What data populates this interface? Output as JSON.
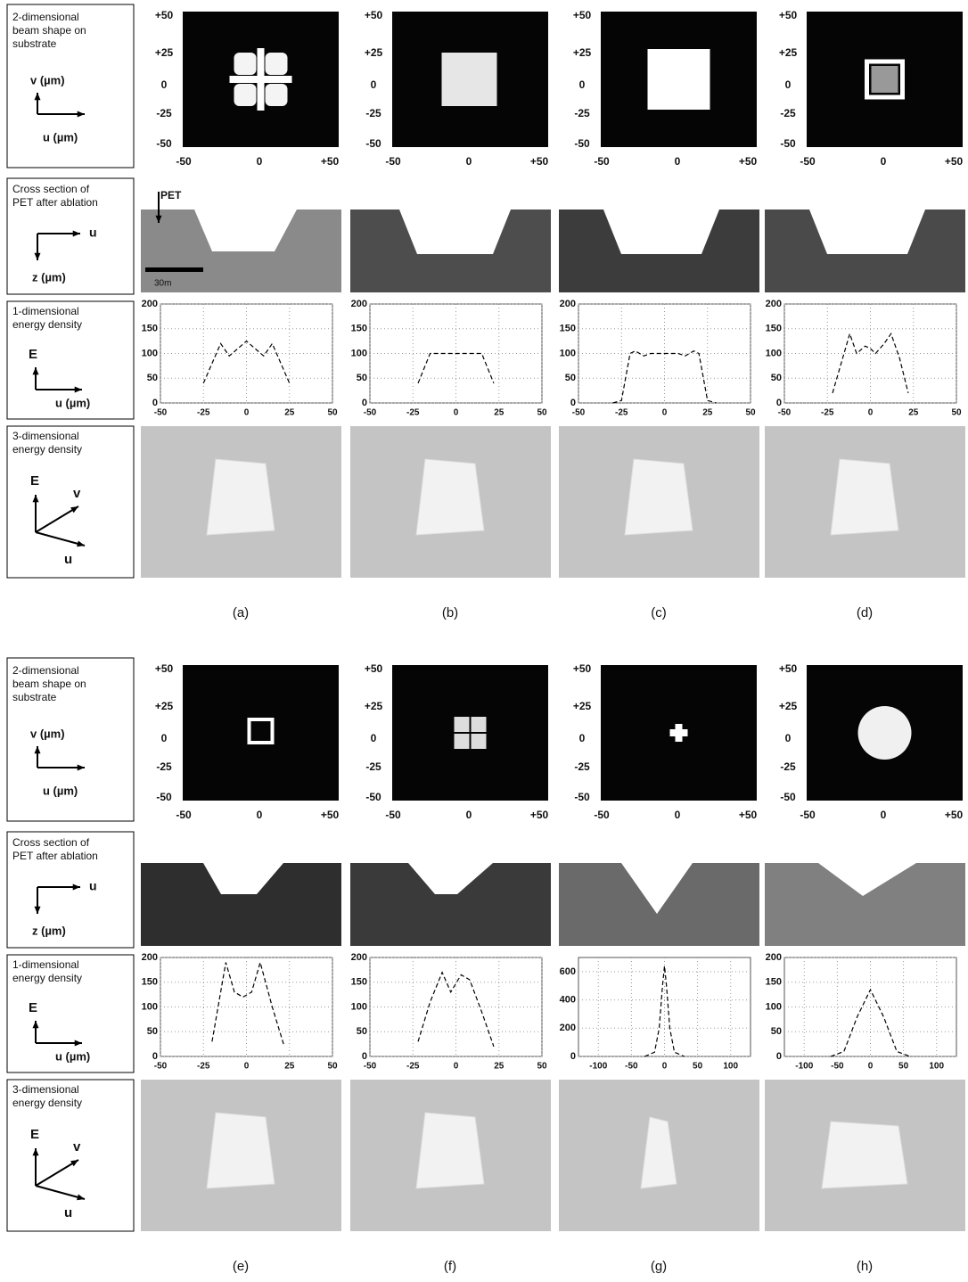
{
  "row_labels": {
    "beam": [
      "2-dimensional",
      "beam shape on",
      "substrate"
    ],
    "cross": [
      "Cross section of",
      "PET after ablation"
    ],
    "energy_1d": [
      "1-dimensional",
      "energy density"
    ],
    "energy_3d": [
      "3-dimensional",
      "energy density"
    ]
  },
  "axis_glyphs": {
    "beam_v": "v (µm)",
    "beam_u": "u (µm)",
    "cross_u": "u",
    "cross_z": "z (µm)",
    "e1_e": "E",
    "e1_u": "u (µm)",
    "e3_e": "E",
    "e3_v": "v",
    "e3_u": "u"
  },
  "beam_ticks": {
    "v": [
      "+50",
      "+25",
      "0",
      "-25",
      "-50"
    ],
    "u": [
      "-50",
      "0",
      "+50"
    ]
  },
  "cross_annotations": {
    "pet": "PET",
    "scale": "30m"
  },
  "panel_labels": [
    "(a)",
    "(b)",
    "(c)",
    "(d)",
    "(e)",
    "(f)",
    "(g)",
    "(h)"
  ],
  "chart_data": [
    {
      "type": "line",
      "color": "#000000",
      "grid": true,
      "xlim": [
        -50,
        50
      ],
      "ylim": [
        0,
        200
      ],
      "xticks": [
        -50,
        -25,
        0,
        25,
        50
      ],
      "yticks": [
        0,
        50,
        100,
        150,
        200
      ],
      "x": [
        -25,
        -15,
        -10,
        -5,
        0,
        5,
        10,
        15,
        25
      ],
      "values": [
        40,
        120,
        95,
        110,
        125,
        110,
        95,
        120,
        40
      ]
    },
    {
      "type": "line",
      "color": "#000000",
      "grid": true,
      "xlim": [
        -50,
        50
      ],
      "ylim": [
        0,
        200
      ],
      "xticks": [
        -50,
        -25,
        0,
        25,
        50
      ],
      "yticks": [
        0,
        50,
        100,
        150,
        200
      ],
      "x": [
        -22,
        -15,
        -8,
        0,
        8,
        15,
        22
      ],
      "values": [
        40,
        100,
        100,
        100,
        100,
        100,
        40
      ]
    },
    {
      "type": "line",
      "color": "#000000",
      "grid": true,
      "xlim": [
        -50,
        50
      ],
      "ylim": [
        0,
        200
      ],
      "xticks": [
        -50,
        -25,
        0,
        25,
        50
      ],
      "yticks": [
        0,
        50,
        100,
        150,
        200
      ],
      "x": [
        -30,
        -25,
        -20,
        -17,
        -12,
        -8,
        0,
        8,
        12,
        17,
        20,
        25,
        30
      ],
      "values": [
        0,
        5,
        100,
        105,
        95,
        100,
        100,
        100,
        95,
        105,
        100,
        5,
        0
      ]
    },
    {
      "type": "line",
      "color": "#000000",
      "grid": true,
      "xlim": [
        -50,
        50
      ],
      "ylim": [
        0,
        200
      ],
      "xticks": [
        -50,
        -25,
        0,
        25,
        50
      ],
      "yticks": [
        0,
        50,
        100,
        150,
        200
      ],
      "x": [
        -22,
        -17,
        -12,
        -8,
        -3,
        0,
        3,
        8,
        12,
        17,
        22
      ],
      "values": [
        20,
        80,
        140,
        100,
        115,
        110,
        100,
        120,
        140,
        90,
        20
      ]
    },
    {
      "type": "line",
      "color": "#000000",
      "grid": true,
      "xlim": [
        -50,
        50
      ],
      "ylim": [
        0,
        200
      ],
      "xticks": [
        -50,
        -25,
        0,
        25,
        50
      ],
      "yticks": [
        0,
        50,
        100,
        150,
        200
      ],
      "x": [
        -20,
        -12,
        -7,
        -2,
        3,
        8,
        15,
        22
      ],
      "values": [
        30,
        190,
        130,
        120,
        130,
        190,
        100,
        20
      ]
    },
    {
      "type": "line",
      "color": "#000000",
      "grid": true,
      "xlim": [
        -50,
        50
      ],
      "ylim": [
        0,
        200
      ],
      "xticks": [
        -50,
        -25,
        0,
        25,
        50
      ],
      "yticks": [
        0,
        50,
        100,
        150,
        200
      ],
      "x": [
        -22,
        -15,
        -8,
        -3,
        3,
        8,
        15,
        22
      ],
      "values": [
        30,
        110,
        170,
        130,
        165,
        155,
        90,
        20
      ]
    },
    {
      "type": "line",
      "color": "#000000",
      "grid": true,
      "xlim": [
        -130,
        130
      ],
      "ylim": [
        0,
        700
      ],
      "xticks": [
        -100,
        -50,
        0,
        50,
        100
      ],
      "yticks": [
        0,
        200,
        400,
        600
      ],
      "x": [
        -30,
        -15,
        -8,
        -3,
        0,
        3,
        8,
        15,
        30
      ],
      "values": [
        0,
        30,
        200,
        500,
        640,
        500,
        200,
        30,
        0
      ]
    },
    {
      "type": "line",
      "color": "#000000",
      "grid": true,
      "xlim": [
        -130,
        130
      ],
      "ylim": [
        0,
        200
      ],
      "xticks": [
        -100,
        -50,
        0,
        50,
        100
      ],
      "yticks": [
        0,
        50,
        100,
        150,
        200
      ],
      "x": [
        -60,
        -40,
        -20,
        0,
        20,
        40,
        60
      ],
      "values": [
        0,
        10,
        80,
        135,
        80,
        10,
        0
      ]
    }
  ]
}
